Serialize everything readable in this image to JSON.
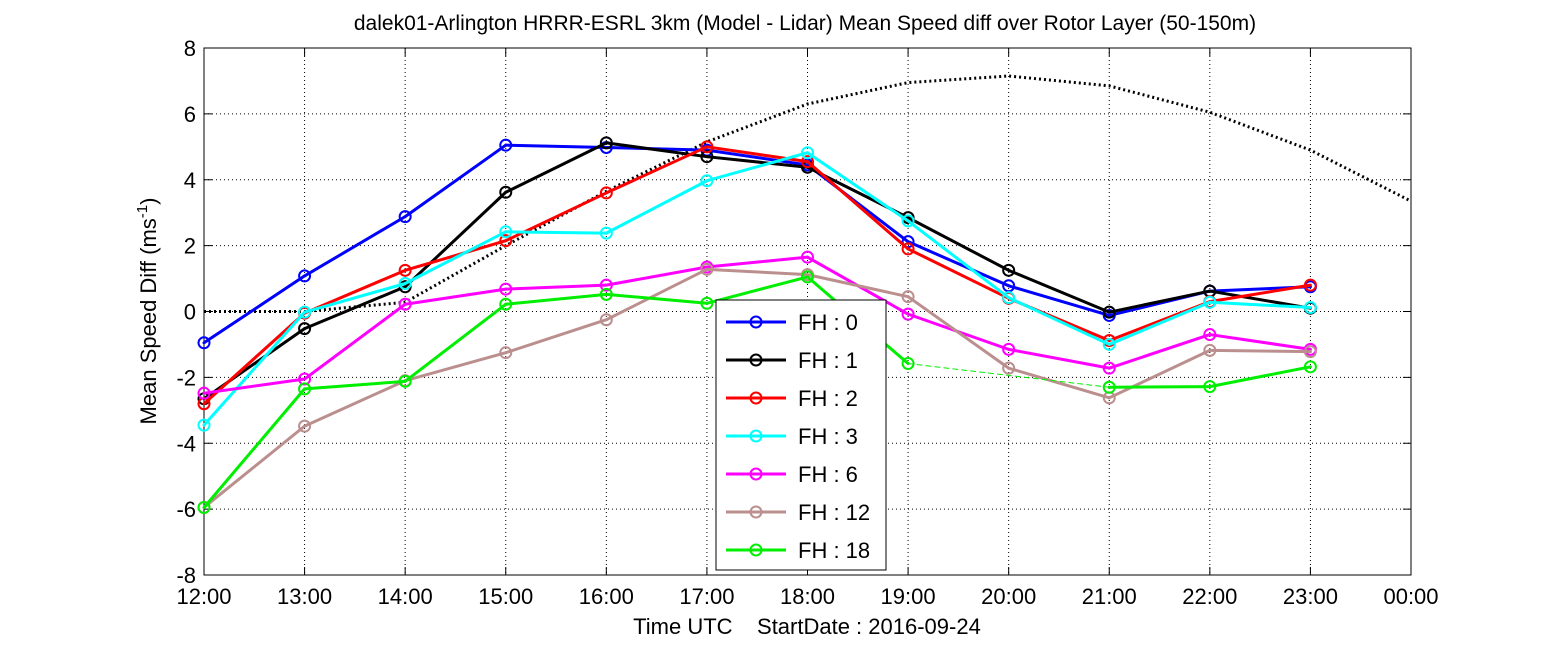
{
  "chart_data": {
    "type": "line",
    "title": "dalek01-Arlington HRRR-ESRL 3km (Model - Lidar) Mean Speed diff over Rotor Layer (50-150m)",
    "xlabel": "Time UTC    StartDate : 2016-09-24",
    "ylabel": "Mean Speed Diff (ms",
    "ylabel_sup": "-1",
    "ylabel_close": ")",
    "x_ticks": [
      "12:00",
      "13:00",
      "14:00",
      "15:00",
      "16:00",
      "17:00",
      "18:00",
      "19:00",
      "20:00",
      "21:00",
      "22:00",
      "23:00",
      "00:00"
    ],
    "x_range_hours": [
      12,
      24
    ],
    "y_ticks": [
      -8,
      -6,
      -4,
      -2,
      0,
      2,
      4,
      6,
      8
    ],
    "ylim": [
      -8,
      8
    ],
    "grid": true,
    "legend_placement": "bottom-center",
    "series": [
      {
        "name": "FH : 0",
        "color": "#0000ff",
        "x": [
          12,
          13,
          14,
          15,
          16,
          17,
          18,
          19,
          20,
          21,
          22,
          23
        ],
        "values": [
          -0.95,
          1.08,
          2.88,
          5.05,
          4.98,
          4.9,
          4.45,
          2.12,
          0.78,
          -0.12,
          0.62,
          0.75
        ]
      },
      {
        "name": "FH : 1",
        "color": "#000000",
        "x": [
          12,
          13,
          14,
          15,
          16,
          17,
          18,
          19,
          20,
          21,
          22,
          23
        ],
        "values": [
          -2.65,
          -0.52,
          0.75,
          3.62,
          5.12,
          4.7,
          4.38,
          2.85,
          1.25,
          -0.02,
          0.62,
          0.1
        ]
      },
      {
        "name": "FH : 2",
        "color": "#ff0000",
        "x": [
          12,
          13,
          14,
          15,
          16,
          17,
          18,
          19,
          20,
          21,
          22,
          23
        ],
        "values": [
          -2.8,
          -0.05,
          1.25,
          2.15,
          3.6,
          5.0,
          4.55,
          1.9,
          0.4,
          -0.88,
          0.3,
          0.8
        ]
      },
      {
        "name": "FH : 3",
        "color": "#00ffff",
        "x": [
          12,
          13,
          14,
          15,
          16,
          17,
          18,
          19,
          20,
          21,
          22,
          23
        ],
        "values": [
          -3.45,
          -0.02,
          0.85,
          2.42,
          2.38,
          3.97,
          4.82,
          2.75,
          0.42,
          -1.0,
          0.28,
          0.12
        ]
      },
      {
        "name": "FH : 6",
        "color": "#ff00ff",
        "x": [
          12,
          13,
          14,
          15,
          16,
          17,
          18,
          19,
          20,
          21,
          22,
          23
        ],
        "values": [
          -2.48,
          -2.05,
          0.22,
          0.68,
          0.8,
          1.35,
          1.65,
          -0.08,
          -1.15,
          -1.72,
          -0.7,
          -1.15
        ]
      },
      {
        "name": "FH : 12",
        "color": "#bc8f8f",
        "x": [
          12,
          13,
          14,
          15,
          16,
          17,
          18,
          19,
          20,
          21,
          22,
          23
        ],
        "values": [
          -5.95,
          -3.48,
          -2.1,
          -1.25,
          -0.25,
          1.28,
          1.12,
          0.45,
          -1.72,
          -2.62,
          -1.18,
          -1.22
        ]
      },
      {
        "name": "FH : 18",
        "color": "#00ee00",
        "x": [
          12,
          13,
          14,
          15,
          16,
          17,
          18,
          19,
          21,
          22,
          23
        ],
        "values": [
          -5.95,
          -2.35,
          -2.12,
          0.22,
          0.52,
          0.25,
          1.05,
          -1.58,
          -2.3,
          -2.28,
          -1.68
        ]
      }
    ],
    "dotted_curve": {
      "color": "#000000",
      "x": [
        12,
        13,
        14,
        15,
        16,
        17,
        18,
        19,
        20,
        21,
        22,
        23,
        24
      ],
      "values": [
        0,
        0,
        0.28,
        2.0,
        3.65,
        5.15,
        6.3,
        6.95,
        7.15,
        6.85,
        6.05,
        4.9,
        3.35
      ]
    }
  }
}
